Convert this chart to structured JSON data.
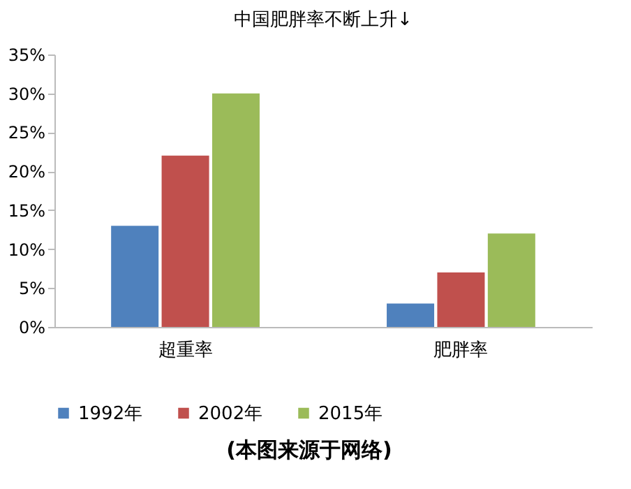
{
  "chart_data": {
    "type": "bar",
    "title": "中国肥胖率不断上升↓",
    "categories": [
      "超重率",
      "肥胖率"
    ],
    "series": [
      {
        "name": "1992年",
        "color": "#4f81bd",
        "values": [
          13,
          3
        ]
      },
      {
        "name": "2002年",
        "color": "#c0504d",
        "values": [
          22,
          7
        ]
      },
      {
        "name": "2015年",
        "color": "#9bbb59",
        "values": [
          30,
          12
        ]
      }
    ],
    "ylim": [
      0,
      35
    ],
    "yticks": [
      {
        "value": 0,
        "label": "0%"
      },
      {
        "value": 5,
        "label": "5%"
      },
      {
        "value": 10,
        "label": "10%"
      },
      {
        "value": 15,
        "label": "15%"
      },
      {
        "value": 20,
        "label": "20%"
      },
      {
        "value": 25,
        "label": "25%"
      },
      {
        "value": 30,
        "label": "30%"
      },
      {
        "value": 35,
        "label": "35%"
      }
    ],
    "grid": false,
    "legend": "bottom",
    "annotations": [
      "(本图来源于网络)"
    ]
  }
}
